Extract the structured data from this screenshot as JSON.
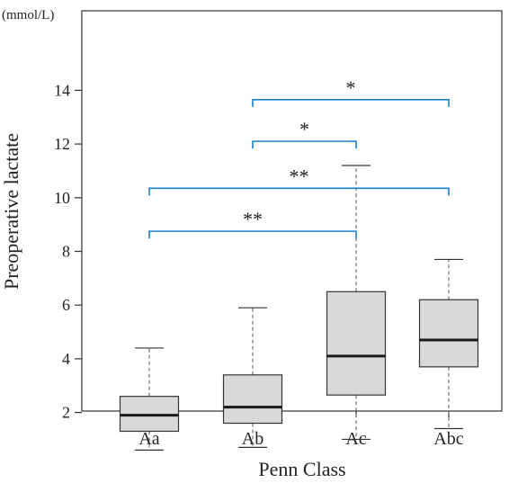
{
  "chart_data": {
    "type": "box",
    "unit": "(mmol/L)",
    "xlabel": "Penn Class",
    "ylabel": "Preoperative lactate",
    "ylim": [
      0,
      15
    ],
    "yticks": [
      2,
      4,
      6,
      8,
      10,
      12,
      14
    ],
    "grid": false,
    "categories": [
      "Aa",
      "Ab",
      "Ac",
      "Abc"
    ],
    "boxes": [
      {
        "category": "Aa",
        "min": 0.6,
        "q1": 1.3,
        "median": 1.9,
        "q3": 2.6,
        "max": 4.4
      },
      {
        "category": "Ab",
        "min": 0.7,
        "q1": 1.6,
        "median": 2.2,
        "q3": 3.4,
        "max": 5.9
      },
      {
        "category": "Ac",
        "min": 1.0,
        "q1": 2.65,
        "median": 4.1,
        "q3": 6.5,
        "max": 11.2
      },
      {
        "category": "Abc",
        "min": 1.4,
        "q1": 3.7,
        "median": 4.7,
        "q3": 6.2,
        "max": 7.7
      }
    ],
    "significance": [
      {
        "from": "Aa",
        "to": "Ac",
        "label": "**",
        "y": 8.75
      },
      {
        "from": "Aa",
        "to": "Abc",
        "label": "**",
        "y": 10.35
      },
      {
        "from": "Ab",
        "to": "Ac",
        "label": "*",
        "y": 12.1
      },
      {
        "from": "Ab",
        "to": "Abc",
        "label": "*",
        "y": 13.65
      }
    ],
    "colors": {
      "box_fill": "#d9d9d9",
      "box_stroke": "#333333",
      "bracket": "#1a7fc9",
      "median": "#1a1a1a"
    }
  }
}
